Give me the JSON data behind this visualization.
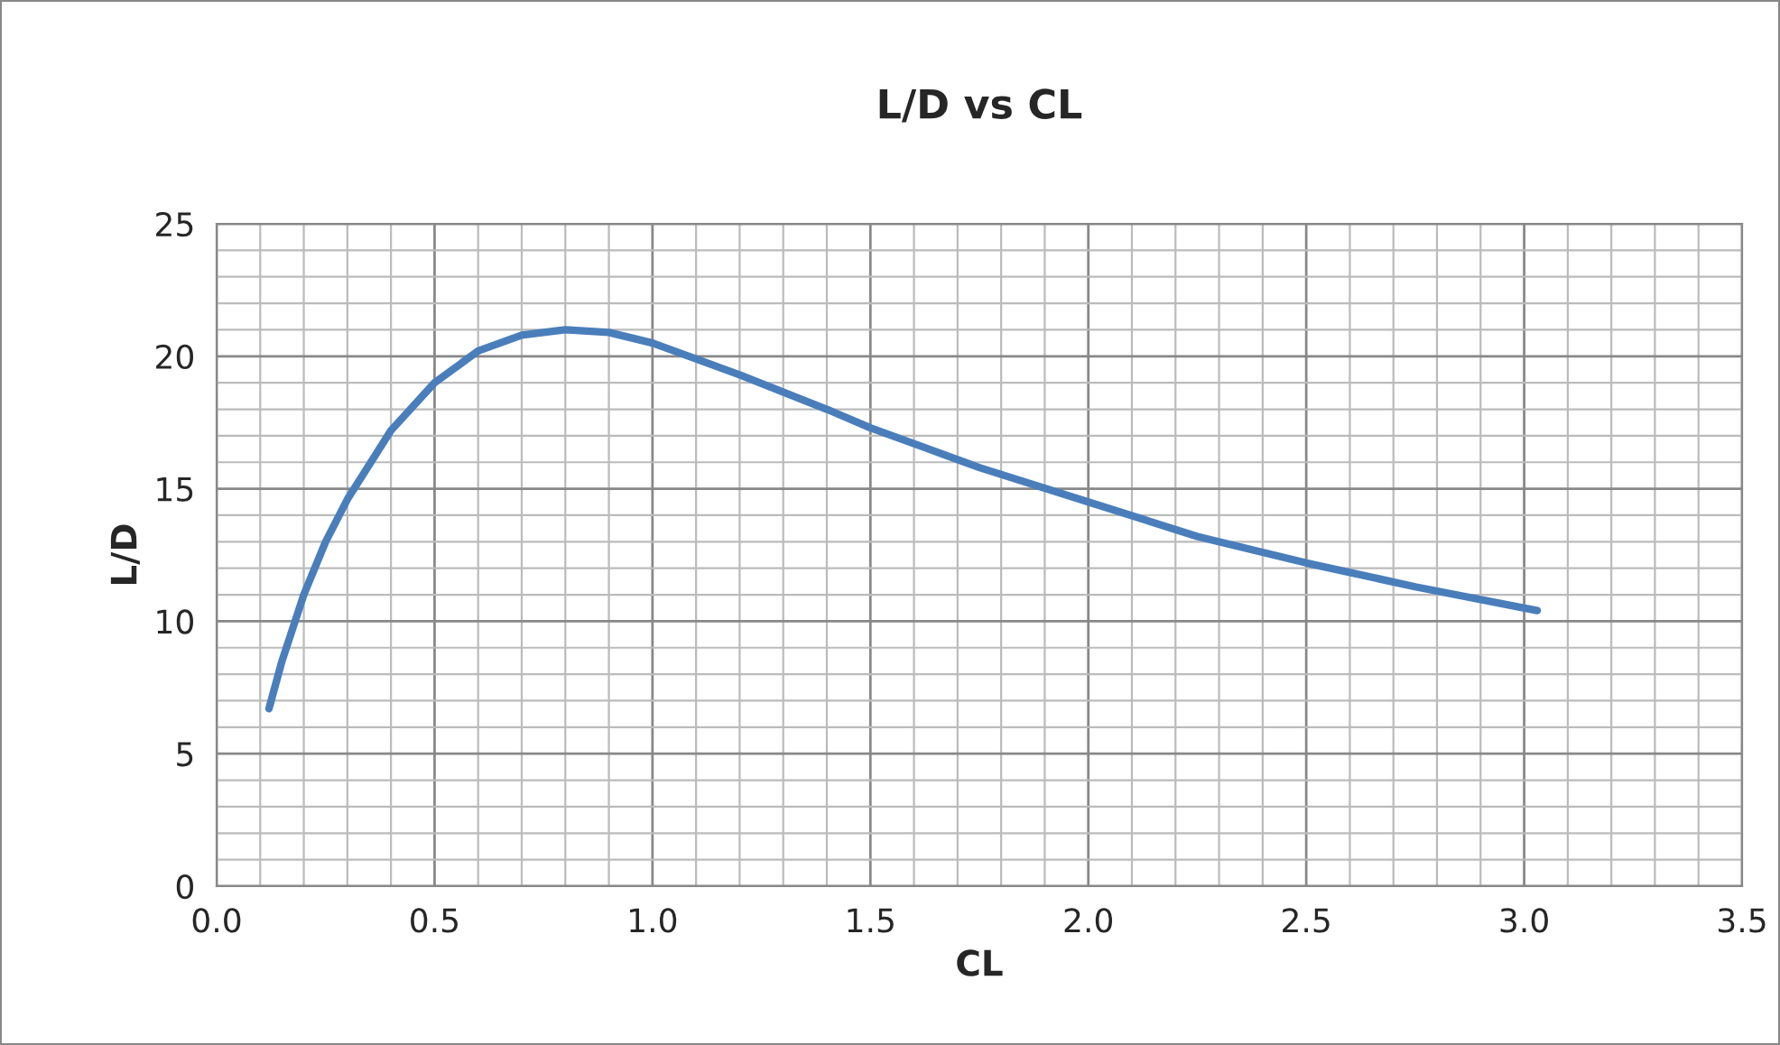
{
  "chart_data": {
    "type": "line",
    "title": "L/D vs CL",
    "xlabel": "CL",
    "ylabel": "L/D",
    "x": [
      0.12,
      0.15,
      0.2,
      0.25,
      0.3,
      0.4,
      0.5,
      0.6,
      0.7,
      0.8,
      0.9,
      1.0,
      1.2,
      1.4,
      1.5,
      1.75,
      2.0,
      2.25,
      2.5,
      2.75,
      3.03
    ],
    "series": [
      {
        "color": "#4a7ebb",
        "values": [
          6.7,
          8.5,
          11.0,
          13.0,
          14.6,
          17.2,
          19.0,
          20.2,
          20.8,
          21.0,
          20.9,
          20.5,
          19.3,
          18.0,
          17.3,
          15.8,
          14.5,
          13.2,
          12.2,
          11.3,
          10.4
        ]
      }
    ],
    "xlim": [
      0,
      3.5
    ],
    "xticks": [
      {
        "value": 0,
        "label": "0.0"
      },
      {
        "value": 0.5,
        "label": "0.5"
      },
      {
        "value": 1,
        "label": "1.0"
      },
      {
        "value": 1.5,
        "label": "1.5"
      },
      {
        "value": 2,
        "label": "2.0"
      },
      {
        "value": 2.5,
        "label": "2.5"
      },
      {
        "value": 3,
        "label": "3.0"
      },
      {
        "value": 3.5,
        "label": "3.5"
      }
    ],
    "ylim": [
      0,
      25
    ],
    "yticks": [
      0,
      5,
      10,
      15,
      20,
      25
    ],
    "grid": true,
    "legend": false,
    "marker": "none",
    "line_style": "solid"
  }
}
